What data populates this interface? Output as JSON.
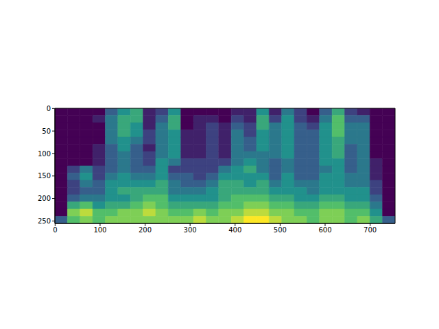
{
  "chart_data": {
    "type": "heatmap",
    "xlim": [
      -0.5,
      755.5
    ],
    "xticks": [
      0,
      100,
      200,
      300,
      400,
      500,
      600,
      700
    ],
    "ylim": [
      255.5,
      -0.5
    ],
    "yticks": [
      0,
      50,
      100,
      150,
      200,
      250
    ],
    "x_bins": [
      -0.5,
      27.5,
      55.5,
      83.5,
      111.5,
      139.5,
      167.5,
      195.5,
      223.5,
      251.5,
      279.5,
      307.5,
      335.5,
      363.5,
      391.5,
      419.5,
      447.5,
      475.5,
      503.5,
      531.5,
      559.5,
      587.5,
      615.5,
      643.5,
      671.5,
      699.5,
      727.5,
      755.5
    ],
    "y_bins": [
      -0.5,
      15.5,
      31.5,
      47.5,
      63.5,
      79.5,
      95.5,
      111.5,
      127.5,
      143.5,
      159.5,
      175.5,
      191.5,
      207.5,
      223.5,
      239.5,
      255.5
    ],
    "zlim": [
      0,
      10
    ],
    "cells": [
      [
        0,
        0,
        0,
        0,
        3,
        5,
        6,
        1,
        2,
        5,
        0,
        0,
        0,
        0,
        1,
        1,
        5,
        1,
        4,
        2,
        0,
        3,
        6,
        2,
        1,
        0,
        0
      ],
      [
        0,
        0,
        0,
        1,
        4,
        6,
        6,
        1,
        3,
        6,
        0,
        1,
        1,
        0,
        2,
        1,
        6,
        2,
        5,
        2,
        1,
        4,
        7,
        3,
        3,
        0,
        0
      ],
      [
        0,
        0,
        0,
        0,
        4,
        6,
        5,
        1,
        4,
        6,
        0,
        1,
        2,
        1,
        3,
        2,
        6,
        4,
        5,
        3,
        2,
        5,
        7,
        4,
        4,
        0,
        0
      ],
      [
        0,
        0,
        0,
        0,
        4,
        6,
        5,
        2,
        4,
        5,
        1,
        1,
        2,
        1,
        4,
        2,
        5,
        4,
        5,
        3,
        3,
        5,
        7,
        4,
        4,
        0,
        0
      ],
      [
        0,
        0,
        0,
        0,
        4,
        5,
        4,
        2,
        4,
        5,
        1,
        1,
        2,
        1,
        4,
        3,
        5,
        4,
        5,
        3,
        3,
        5,
        6,
        4,
        4,
        0,
        0
      ],
      [
        0,
        0,
        0,
        1,
        3,
        5,
        3,
        1,
        4,
        5,
        1,
        1,
        2,
        1,
        4,
        3,
        5,
        4,
        5,
        3,
        3,
        5,
        6,
        3,
        4,
        0,
        0
      ],
      [
        0,
        0,
        0,
        1,
        3,
        4,
        3,
        2,
        4,
        5,
        1,
        1,
        2,
        1,
        4,
        4,
        4,
        4,
        5,
        3,
        3,
        5,
        6,
        3,
        4,
        0,
        0
      ],
      [
        0,
        0,
        0,
        1,
        3,
        4,
        3,
        2,
        5,
        4,
        2,
        2,
        2,
        2,
        4,
        5,
        4,
        3,
        4,
        3,
        3,
        5,
        5,
        3,
        4,
        1,
        0
      ],
      [
        0,
        2,
        4,
        2,
        3,
        4,
        3,
        3,
        5,
        2,
        2,
        2,
        2,
        4,
        5,
        6,
        4,
        3,
        4,
        3,
        3,
        4,
        5,
        3,
        4,
        1,
        0
      ],
      [
        0,
        3,
        5,
        2,
        4,
        5,
        4,
        4,
        5,
        3,
        3,
        2,
        3,
        5,
        5,
        5,
        5,
        3,
        5,
        3,
        3,
        5,
        5,
        4,
        4,
        1,
        0
      ],
      [
        0,
        2,
        4,
        3,
        5,
        5,
        5,
        5,
        6,
        4,
        3,
        3,
        4,
        6,
        6,
        5,
        6,
        4,
        5,
        4,
        4,
        5,
        5,
        4,
        4,
        2,
        0
      ],
      [
        0,
        2,
        3,
        3,
        5,
        6,
        6,
        6,
        6,
        4,
        4,
        4,
        5,
        6,
        6,
        6,
        6,
        5,
        5,
        5,
        4,
        5,
        5,
        5,
        5,
        2,
        0
      ],
      [
        0,
        3,
        4,
        4,
        5,
        5,
        6,
        7,
        7,
        5,
        5,
        5,
        5,
        6,
        7,
        7,
        7,
        6,
        6,
        5,
        5,
        6,
        6,
        5,
        5,
        3,
        0
      ],
      [
        0,
        6,
        7,
        5,
        6,
        6,
        7,
        8,
        7,
        6,
        6,
        6,
        6,
        7,
        7,
        8,
        8,
        7,
        7,
        6,
        6,
        7,
        7,
        6,
        6,
        4,
        0
      ],
      [
        0,
        8,
        9,
        7,
        7,
        8,
        8,
        9,
        8,
        7,
        7,
        8,
        7,
        8,
        8,
        9,
        9,
        8,
        8,
        7,
        7,
        8,
        8,
        7,
        7,
        5,
        0
      ],
      [
        3,
        7,
        8,
        7,
        8,
        8,
        8,
        8,
        8,
        8,
        8,
        9,
        8,
        8,
        9,
        10,
        10,
        9,
        8,
        8,
        7,
        8,
        8,
        7,
        8,
        6,
        3
      ]
    ]
  }
}
